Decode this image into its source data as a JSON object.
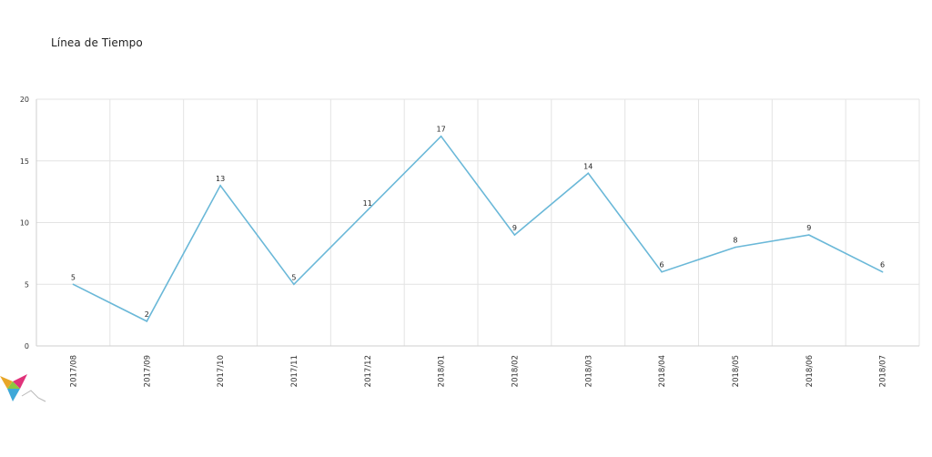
{
  "chart_data": {
    "type": "line",
    "title": "Línea de Tiempo",
    "xlabel": "",
    "ylabel": "",
    "categories": [
      "2017/08",
      "2017/09",
      "2017/10",
      "2017/11",
      "2017/12",
      "2018/01",
      "2018/02",
      "2018/03",
      "2018/04",
      "2018/05",
      "2018/06",
      "2018/07"
    ],
    "series": [
      {
        "values": [
          5,
          2,
          13,
          5,
          11,
          17,
          9,
          14,
          6,
          8,
          9,
          6
        ],
        "color": "#6ab8d8"
      }
    ],
    "ylim": [
      0,
      20
    ],
    "yticks": [
      0,
      5,
      10,
      15,
      20
    ],
    "grid": true,
    "data_labels": true,
    "legend": "none"
  },
  "colors": {
    "grid": "#e3e3e3",
    "axis": "#cfcfcf",
    "tick_text": "#333333",
    "label_text": "#222222"
  },
  "logo": {
    "icon": "origami-bird-logo"
  }
}
